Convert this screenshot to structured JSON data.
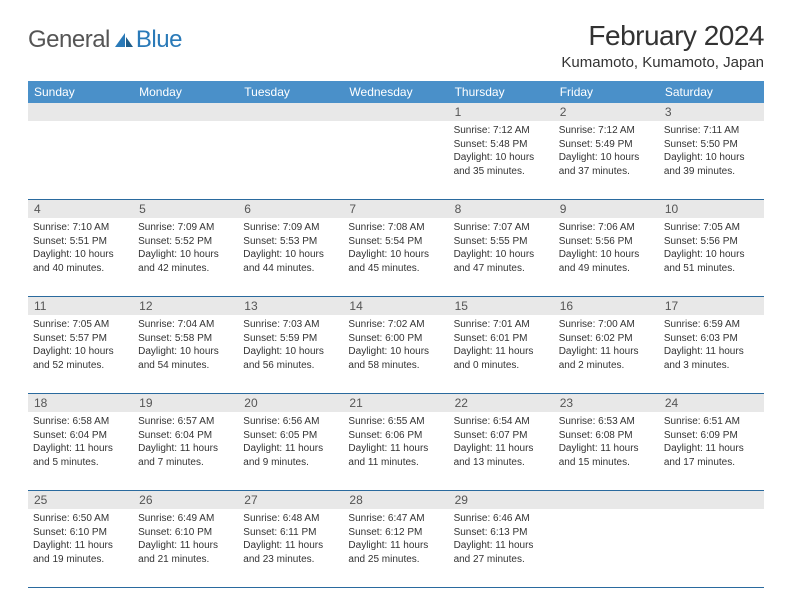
{
  "brand": {
    "text1": "General",
    "text2": "Blue"
  },
  "title": "February 2024",
  "location": "Kumamoto, Kumamoto, Japan",
  "colors": {
    "header_bg": "#4a90c9",
    "header_fg": "#ffffff",
    "row_rule": "#2a6a9e",
    "daynum_bg": "#e8e8e8",
    "text": "#333333",
    "logo_blue": "#2a7ab8"
  },
  "weekdays": [
    "Sunday",
    "Monday",
    "Tuesday",
    "Wednesday",
    "Thursday",
    "Friday",
    "Saturday"
  ],
  "weeks": [
    [
      null,
      null,
      null,
      null,
      {
        "n": "1",
        "sunrise": "7:12 AM",
        "sunset": "5:48 PM",
        "dayl": "10 hours and 35 minutes."
      },
      {
        "n": "2",
        "sunrise": "7:12 AM",
        "sunset": "5:49 PM",
        "dayl": "10 hours and 37 minutes."
      },
      {
        "n": "3",
        "sunrise": "7:11 AM",
        "sunset": "5:50 PM",
        "dayl": "10 hours and 39 minutes."
      }
    ],
    [
      {
        "n": "4",
        "sunrise": "7:10 AM",
        "sunset": "5:51 PM",
        "dayl": "10 hours and 40 minutes."
      },
      {
        "n": "5",
        "sunrise": "7:09 AM",
        "sunset": "5:52 PM",
        "dayl": "10 hours and 42 minutes."
      },
      {
        "n": "6",
        "sunrise": "7:09 AM",
        "sunset": "5:53 PM",
        "dayl": "10 hours and 44 minutes."
      },
      {
        "n": "7",
        "sunrise": "7:08 AM",
        "sunset": "5:54 PM",
        "dayl": "10 hours and 45 minutes."
      },
      {
        "n": "8",
        "sunrise": "7:07 AM",
        "sunset": "5:55 PM",
        "dayl": "10 hours and 47 minutes."
      },
      {
        "n": "9",
        "sunrise": "7:06 AM",
        "sunset": "5:56 PM",
        "dayl": "10 hours and 49 minutes."
      },
      {
        "n": "10",
        "sunrise": "7:05 AM",
        "sunset": "5:56 PM",
        "dayl": "10 hours and 51 minutes."
      }
    ],
    [
      {
        "n": "11",
        "sunrise": "7:05 AM",
        "sunset": "5:57 PM",
        "dayl": "10 hours and 52 minutes."
      },
      {
        "n": "12",
        "sunrise": "7:04 AM",
        "sunset": "5:58 PM",
        "dayl": "10 hours and 54 minutes."
      },
      {
        "n": "13",
        "sunrise": "7:03 AM",
        "sunset": "5:59 PM",
        "dayl": "10 hours and 56 minutes."
      },
      {
        "n": "14",
        "sunrise": "7:02 AM",
        "sunset": "6:00 PM",
        "dayl": "10 hours and 58 minutes."
      },
      {
        "n": "15",
        "sunrise": "7:01 AM",
        "sunset": "6:01 PM",
        "dayl": "11 hours and 0 minutes."
      },
      {
        "n": "16",
        "sunrise": "7:00 AM",
        "sunset": "6:02 PM",
        "dayl": "11 hours and 2 minutes."
      },
      {
        "n": "17",
        "sunrise": "6:59 AM",
        "sunset": "6:03 PM",
        "dayl": "11 hours and 3 minutes."
      }
    ],
    [
      {
        "n": "18",
        "sunrise": "6:58 AM",
        "sunset": "6:04 PM",
        "dayl": "11 hours and 5 minutes."
      },
      {
        "n": "19",
        "sunrise": "6:57 AM",
        "sunset": "6:04 PM",
        "dayl": "11 hours and 7 minutes."
      },
      {
        "n": "20",
        "sunrise": "6:56 AM",
        "sunset": "6:05 PM",
        "dayl": "11 hours and 9 minutes."
      },
      {
        "n": "21",
        "sunrise": "6:55 AM",
        "sunset": "6:06 PM",
        "dayl": "11 hours and 11 minutes."
      },
      {
        "n": "22",
        "sunrise": "6:54 AM",
        "sunset": "6:07 PM",
        "dayl": "11 hours and 13 minutes."
      },
      {
        "n": "23",
        "sunrise": "6:53 AM",
        "sunset": "6:08 PM",
        "dayl": "11 hours and 15 minutes."
      },
      {
        "n": "24",
        "sunrise": "6:51 AM",
        "sunset": "6:09 PM",
        "dayl": "11 hours and 17 minutes."
      }
    ],
    [
      {
        "n": "25",
        "sunrise": "6:50 AM",
        "sunset": "6:10 PM",
        "dayl": "11 hours and 19 minutes."
      },
      {
        "n": "26",
        "sunrise": "6:49 AM",
        "sunset": "6:10 PM",
        "dayl": "11 hours and 21 minutes."
      },
      {
        "n": "27",
        "sunrise": "6:48 AM",
        "sunset": "6:11 PM",
        "dayl": "11 hours and 23 minutes."
      },
      {
        "n": "28",
        "sunrise": "6:47 AM",
        "sunset": "6:12 PM",
        "dayl": "11 hours and 25 minutes."
      },
      {
        "n": "29",
        "sunrise": "6:46 AM",
        "sunset": "6:13 PM",
        "dayl": "11 hours and 27 minutes."
      },
      null,
      null
    ]
  ],
  "labels": {
    "sunrise": "Sunrise:",
    "sunset": "Sunset:",
    "daylight": "Daylight:"
  }
}
